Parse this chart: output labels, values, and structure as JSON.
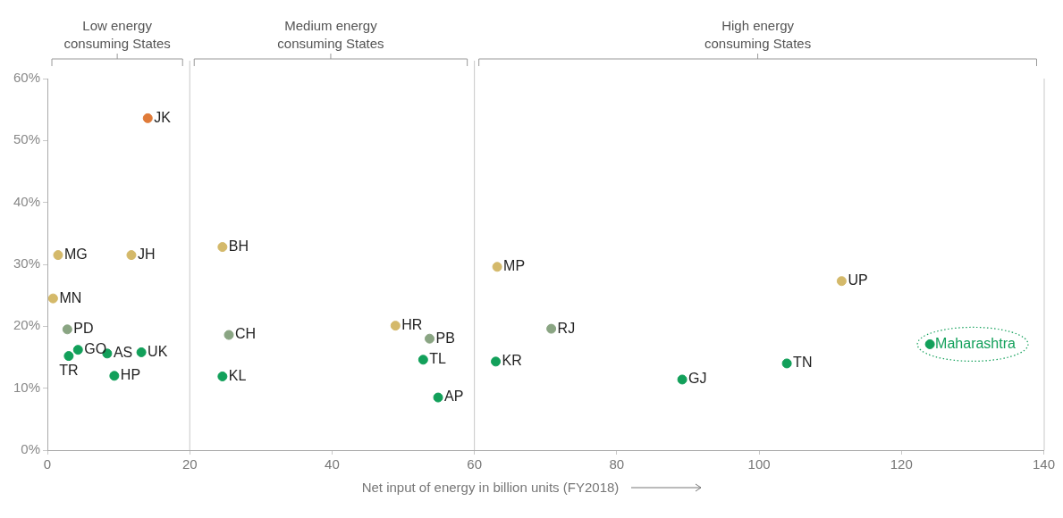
{
  "chart_data": {
    "type": "scatter",
    "xlabel": "Net input of energy in billion units (FY2018)",
    "xlim": [
      0,
      140
    ],
    "xticks": [
      0,
      20,
      40,
      60,
      80,
      100,
      120,
      140
    ],
    "ylim": [
      0,
      60
    ],
    "yticks": [
      {
        "value": 0,
        "label": "0%"
      },
      {
        "value": 10,
        "label": "10%"
      },
      {
        "value": 20,
        "label": "20%"
      },
      {
        "value": 30,
        "label": "30%"
      },
      {
        "value": 40,
        "label": "40%"
      },
      {
        "value": 50,
        "label": "50%"
      },
      {
        "value": 60,
        "label": "60%"
      }
    ],
    "grid": false,
    "legend": false,
    "marker": "circle",
    "series": [
      {
        "x": [
          14.1,
          1.5,
          11.8,
          0.8,
          2.8,
          4.3,
          3.0,
          8.4,
          9.4,
          13.2,
          24.6,
          25.5,
          24.6,
          48.9,
          53.7,
          52.8,
          54.9,
          63.2,
          111.6,
          70.8,
          63.0,
          89.2,
          103.9
        ],
        "values": [
          53.6,
          31.5,
          31.5,
          24.5,
          19.5,
          16.2,
          15.2,
          15.6,
          12.0,
          15.8,
          32.8,
          18.6,
          11.9,
          20.1,
          18.0,
          14.6,
          8.5,
          29.6,
          27.3,
          19.6,
          14.3,
          11.4,
          14.0
        ],
        "colors": [
          "#e07b39",
          "#d4b96a",
          "#d4b96a",
          "#d4b96a",
          "#8aa583",
          "#12a05a",
          "#12a05a",
          "#12a05a",
          "#12a05a",
          "#12a05a",
          "#d4b96a",
          "#8aa583",
          "#12a05a",
          "#d4b96a",
          "#8aa583",
          "#12a05a",
          "#12a05a",
          "#d4b96a",
          "#d4b96a",
          "#8aa583",
          "#12a05a",
          "#12a05a",
          "#12a05a"
        ]
      },
      {
        "name": "Maharashtra",
        "color": "#12a05a",
        "x": [
          124.0
        ],
        "values": [
          17.1
        ]
      }
    ],
    "annotations": [
      "Low energy consuming States",
      "Medium energy consuming States",
      "High energy consuming States",
      {
        "text": "JK",
        "x": 14.1,
        "y": 53.6
      },
      {
        "text": "MG",
        "x": 1.5,
        "y": 31.5
      },
      {
        "text": "JH",
        "x": 11.8,
        "y": 31.5
      },
      {
        "text": "MN",
        "x": 0.8,
        "y": 24.5
      },
      {
        "text": "PD",
        "x": 2.8,
        "y": 19.5
      },
      {
        "text": "GO",
        "x": 4.3,
        "y": 16.2
      },
      {
        "text": "TR",
        "x": 3.0,
        "y": 15.2
      },
      {
        "text": "AS",
        "x": 8.4,
        "y": 15.6
      },
      {
        "text": "HP",
        "x": 9.4,
        "y": 12.0
      },
      {
        "text": "UK",
        "x": 13.2,
        "y": 15.8
      },
      {
        "text": "BH",
        "x": 24.6,
        "y": 32.8
      },
      {
        "text": "CH",
        "x": 25.5,
        "y": 18.6
      },
      {
        "text": "KL",
        "x": 24.6,
        "y": 11.9
      },
      {
        "text": "HR",
        "x": 48.9,
        "y": 20.1
      },
      {
        "text": "PB",
        "x": 53.7,
        "y": 18.0
      },
      {
        "text": "TL",
        "x": 52.8,
        "y": 14.6
      },
      {
        "text": "AP",
        "x": 54.9,
        "y": 8.5
      },
      {
        "text": "MP",
        "x": 63.2,
        "y": 29.6
      },
      {
        "text": "UP",
        "x": 111.6,
        "y": 27.3
      },
      {
        "text": "RJ",
        "x": 70.8,
        "y": 19.6
      },
      {
        "text": "KR",
        "x": 63.0,
        "y": 14.3
      },
      {
        "text": "GJ",
        "x": 89.2,
        "y": 11.4
      },
      {
        "text": "TN",
        "x": 103.9,
        "y": 14.0
      }
    ],
    "ref_lines": [
      {
        "axis": "x",
        "value": 20,
        "color": "#c8c8c8"
      },
      {
        "axis": "x",
        "value": 60,
        "color": "#c8c8c8"
      }
    ]
  }
}
